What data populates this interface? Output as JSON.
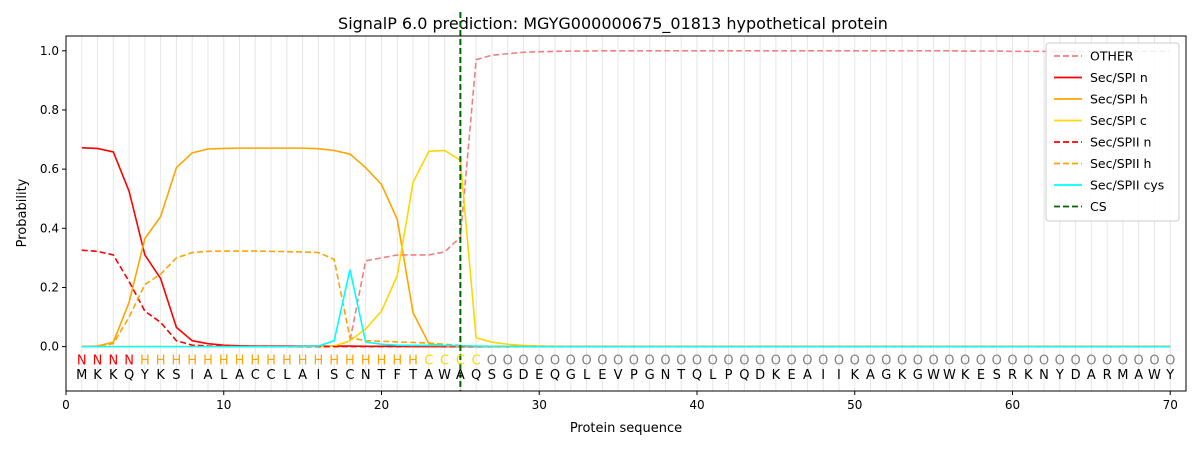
{
  "chart_data": {
    "type": "line",
    "title": "SignalP 6.0 prediction: MGYG000000675_01813 hypothetical protein",
    "xlabel": "Protein sequence",
    "ylabel": "Probability",
    "xlim": [
      0,
      71
    ],
    "ylim": [
      -0.15,
      1.05
    ],
    "x_ticks": [
      0,
      10,
      20,
      30,
      40,
      50,
      60,
      70
    ],
    "y_ticks": [
      0.0,
      0.2,
      0.4,
      0.6,
      0.8,
      1.0
    ],
    "x_tick_labels": [
      "0",
      "10",
      "20",
      "30",
      "40",
      "50",
      "60",
      "70"
    ],
    "y_tick_labels": [
      "0.0",
      "0.2",
      "0.4",
      "0.6",
      "0.8",
      "1.0"
    ],
    "legend_position": "top-right",
    "sequence": "MKKQYKSIALACCLAISCNTFTAWAQSGDEQGLEVPGNTQLPQDKEAIIKAGKGWWKESRKNYDARMAWY",
    "labels": "NNNNHHHHHHHHHHHHHHHHHHCCCCOOOOOOOOOOOOOOOOOOOOOOOOOOOOOOOOOOOOOOOOOOOO",
    "label_colors": {
      "N": "#ff0000",
      "H": "#ffa500",
      "C": "#ffd700",
      "O": "#808080"
    },
    "cs_position": 25,
    "series": [
      {
        "name": "OTHER",
        "color": "#f08080",
        "dash": "dashed",
        "values": [
          0.0,
          0.0,
          0.0,
          0.0,
          0.0,
          0.0,
          0.0,
          0.0,
          0.0,
          0.0,
          0.0,
          0.0,
          0.0,
          0.0,
          0.0,
          0.0,
          0.0,
          0.02,
          0.29,
          0.3,
          0.31,
          0.31,
          0.31,
          0.32,
          0.37,
          0.97,
          0.985,
          0.99,
          0.995,
          0.997,
          0.998,
          0.999,
          0.999,
          1.0,
          1.0,
          1.0,
          1.0,
          1.0,
          1.0,
          1.0,
          1.0,
          1.0,
          1.0,
          1.0,
          1.0,
          1.0,
          1.0,
          1.0,
          1.0,
          1.0,
          1.0,
          1.0,
          1.0,
          1.0,
          1.0,
          1.0,
          0.999,
          0.999,
          0.999,
          0.998,
          0.998,
          0.998,
          0.998,
          0.998,
          0.998,
          0.998,
          0.998,
          0.998,
          0.998,
          0.998
        ]
      },
      {
        "name": "Sec/SPI n",
        "color": "#ff0000",
        "dash": "solid",
        "values": [
          0.672,
          0.67,
          0.658,
          0.525,
          0.31,
          0.23,
          0.065,
          0.02,
          0.01,
          0.005,
          0.003,
          0.002,
          0.002,
          0.002,
          0.002,
          0.002,
          0.002,
          0.002,
          0.001,
          0.001,
          0.001,
          0.0,
          0.0,
          0.0,
          0.0,
          0.0,
          0.0,
          0.0,
          0.0,
          0.0,
          0.0,
          0.0,
          0.0,
          0.0,
          0.0,
          0.0,
          0.0,
          0.0,
          0.0,
          0.0,
          0.0,
          0.0,
          0.0,
          0.0,
          0.0,
          0.0,
          0.0,
          0.0,
          0.0,
          0.0,
          0.0,
          0.0,
          0.0,
          0.0,
          0.0,
          0.0,
          0.0,
          0.0,
          0.0,
          0.0,
          0.0,
          0.0,
          0.0,
          0.0,
          0.0,
          0.0,
          0.0,
          0.0,
          0.0,
          0.0
        ]
      },
      {
        "name": "Sec/SPI h",
        "color": "#ffa500",
        "dash": "solid",
        "values": [
          0.0,
          0.002,
          0.015,
          0.15,
          0.365,
          0.44,
          0.605,
          0.655,
          0.668,
          0.67,
          0.671,
          0.671,
          0.671,
          0.671,
          0.671,
          0.669,
          0.663,
          0.651,
          0.605,
          0.548,
          0.43,
          0.115,
          0.01,
          0.002,
          0.001,
          0.0,
          0.0,
          0.0,
          0.0,
          0.0,
          0.0,
          0.0,
          0.0,
          0.0,
          0.0,
          0.0,
          0.0,
          0.0,
          0.0,
          0.0,
          0.0,
          0.0,
          0.0,
          0.0,
          0.0,
          0.0,
          0.0,
          0.0,
          0.0,
          0.0,
          0.0,
          0.0,
          0.0,
          0.0,
          0.0,
          0.0,
          0.0,
          0.0,
          0.0,
          0.0,
          0.0,
          0.0,
          0.0,
          0.0,
          0.0,
          0.0,
          0.0,
          0.0,
          0.0,
          0.0
        ]
      },
      {
        "name": "Sec/SPI c",
        "color": "#ffd700",
        "dash": "solid",
        "values": [
          0.0,
          0.0,
          0.0,
          0.0,
          0.0,
          0.0,
          0.0,
          0.0,
          0.0,
          0.0,
          0.0,
          0.0,
          0.0,
          0.0,
          0.0,
          0.0,
          0.002,
          0.02,
          0.06,
          0.12,
          0.24,
          0.555,
          0.66,
          0.663,
          0.63,
          0.03,
          0.015,
          0.008,
          0.004,
          0.002,
          0.001,
          0.0,
          0.0,
          0.0,
          0.0,
          0.0,
          0.0,
          0.0,
          0.0,
          0.0,
          0.0,
          0.0,
          0.0,
          0.0,
          0.0,
          0.0,
          0.0,
          0.0,
          0.0,
          0.0,
          0.0,
          0.0,
          0.0,
          0.0,
          0.0,
          0.0,
          0.0,
          0.0,
          0.0,
          0.0,
          0.0,
          0.0,
          0.0,
          0.0,
          0.0,
          0.0,
          0.0,
          0.0,
          0.0,
          0.0
        ]
      },
      {
        "name": "Sec/SPII n",
        "color": "#ff0000",
        "dash": "dashed",
        "values": [
          0.326,
          0.322,
          0.31,
          0.22,
          0.12,
          0.082,
          0.02,
          0.005,
          0.002,
          0.001,
          0.001,
          0.001,
          0.0,
          0.0,
          0.0,
          0.0,
          0.0,
          0.0,
          0.0,
          0.0,
          0.0,
          0.0,
          0.0,
          0.0,
          0.0,
          0.0,
          0.0,
          0.0,
          0.0,
          0.0,
          0.0,
          0.0,
          0.0,
          0.0,
          0.0,
          0.0,
          0.0,
          0.0,
          0.0,
          0.0,
          0.0,
          0.0,
          0.0,
          0.0,
          0.0,
          0.0,
          0.0,
          0.0,
          0.0,
          0.0,
          0.0,
          0.0,
          0.0,
          0.0,
          0.0,
          0.0,
          0.0,
          0.0,
          0.0,
          0.0,
          0.0,
          0.0,
          0.0,
          0.0,
          0.0,
          0.0,
          0.0,
          0.0,
          0.0,
          0.0
        ]
      },
      {
        "name": "Sec/SPII h",
        "color": "#ffa500",
        "dash": "dashed",
        "values": [
          0.0,
          0.001,
          0.01,
          0.1,
          0.21,
          0.245,
          0.3,
          0.318,
          0.322,
          0.323,
          0.323,
          0.323,
          0.322,
          0.321,
          0.32,
          0.318,
          0.295,
          0.03,
          0.02,
          0.018,
          0.016,
          0.014,
          0.012,
          0.008,
          0.004,
          0.001,
          0.0,
          0.0,
          0.0,
          0.0,
          0.0,
          0.0,
          0.0,
          0.0,
          0.0,
          0.0,
          0.0,
          0.0,
          0.0,
          0.0,
          0.0,
          0.0,
          0.0,
          0.0,
          0.0,
          0.0,
          0.0,
          0.0,
          0.0,
          0.0,
          0.0,
          0.0,
          0.0,
          0.0,
          0.0,
          0.0,
          0.0,
          0.0,
          0.0,
          0.0,
          0.0,
          0.0,
          0.0,
          0.0,
          0.0,
          0.0,
          0.0,
          0.0,
          0.0,
          0.0
        ]
      },
      {
        "name": "Sec/SPII cys",
        "color": "#00ffff",
        "dash": "solid",
        "values": [
          0.0,
          0.0,
          0.0,
          0.0,
          0.0,
          0.0,
          0.0,
          0.0,
          0.0,
          0.0,
          0.0,
          0.0,
          0.0,
          0.0,
          0.001,
          0.002,
          0.02,
          0.26,
          0.015,
          0.008,
          0.005,
          0.004,
          0.004,
          0.004,
          0.003,
          0.002,
          0.001,
          0.001,
          0.0,
          0.0,
          0.0,
          0.0,
          0.0,
          0.0,
          0.0,
          0.0,
          0.0,
          0.0,
          0.0,
          0.0,
          0.0,
          0.0,
          0.0,
          0.0,
          0.0,
          0.0,
          0.0,
          0.0,
          0.0,
          0.0,
          0.0,
          0.0,
          0.0,
          0.0,
          0.0,
          0.0,
          0.0,
          0.0,
          0.0,
          0.0,
          0.0,
          0.0,
          0.0,
          0.0,
          0.0,
          0.0,
          0.0,
          0.0,
          0.0,
          0.0
        ]
      }
    ],
    "cs_legend": {
      "name": "CS",
      "color": "#006400",
      "dash": "dashed"
    }
  }
}
